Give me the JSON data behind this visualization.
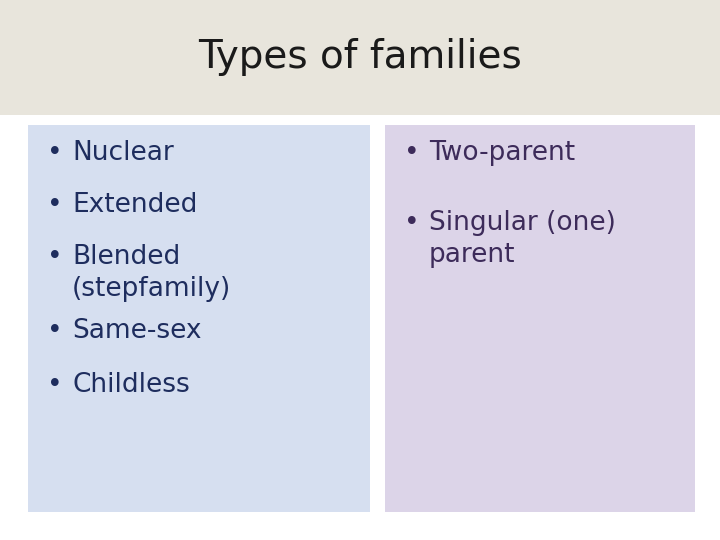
{
  "title": "Types of families",
  "title_fontsize": 28,
  "title_color": "#1a1a1a",
  "title_bg_color": "#e8e5dc",
  "page_bg_color": "#ffffff",
  "left_box_color": "#d6dff0",
  "right_box_color": "#dcd4e8",
  "left_items": [
    "Nuclear",
    "Extended",
    "Blended\n(stepfamily)",
    "Same-sex",
    "Childless"
  ],
  "right_items": [
    "Two-parent",
    "Singular (one)\nparent"
  ],
  "left_text_color": "#1e2d5e",
  "right_text_color": "#3d2b5a",
  "item_fontsize": 19,
  "bullet": "•"
}
